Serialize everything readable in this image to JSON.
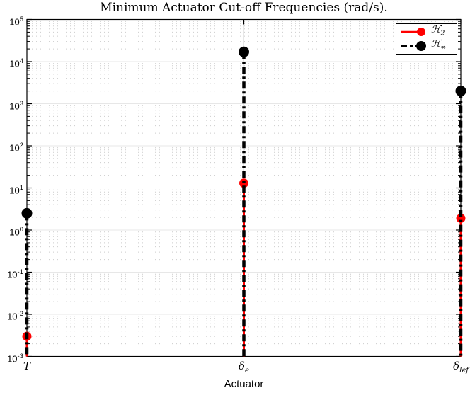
{
  "chart_data": {
    "type": "stem",
    "title": "Minimum Actuator Cut-off Frequencies (rad/s).",
    "xlabel": "Actuator",
    "yscale": "log",
    "ylim": [
      0.001,
      100000
    ],
    "ytick_exponents": [
      5,
      4,
      3,
      2,
      1,
      0,
      -1,
      -2,
      -3
    ],
    "ytick_base": "10",
    "categories": [
      {
        "main": "T",
        "sub": ""
      },
      {
        "main": "δ",
        "sub": "e"
      },
      {
        "main": "δ",
        "sub": "lef"
      }
    ],
    "baseline": 0.001,
    "series": [
      {
        "name": "H2",
        "label_main": "ℋ",
        "label_sub": "2",
        "color": "#ff0000",
        "line_style": "solid",
        "values": [
          0.003,
          13,
          1.9
        ]
      },
      {
        "name": "Hinf",
        "label_main": "ℋ",
        "label_sub": "∞",
        "color": "#000000",
        "line_style": "dash-dot",
        "values": [
          2.5,
          17000,
          2000
        ]
      }
    ],
    "grid": {
      "major": "solid",
      "minor": "dotted"
    },
    "legend_position": "northeast",
    "colors": {
      "axis": "#000000",
      "grid_major": "#e7e7e7",
      "grid_minor_dots": "#cccccc",
      "background": "#ffffff"
    }
  }
}
